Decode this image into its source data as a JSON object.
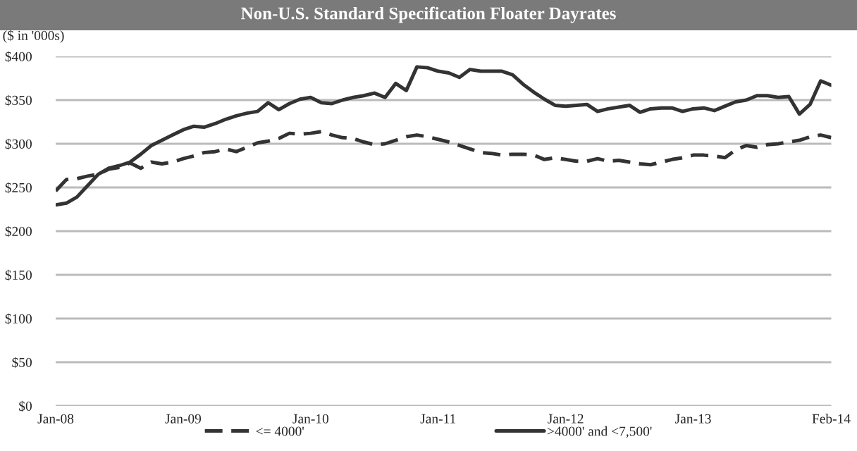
{
  "chart_data": {
    "type": "line",
    "title": "Non-U.S. Standard Specification Floater Dayrates",
    "ylabel": "($ in '000s)",
    "categories": [
      "Jan-08",
      null,
      null,
      null,
      null,
      null,
      null,
      null,
      null,
      null,
      null,
      null,
      "Jan-09",
      null,
      null,
      null,
      null,
      null,
      null,
      null,
      null,
      null,
      null,
      null,
      "Jan-10",
      null,
      null,
      null,
      null,
      null,
      null,
      null,
      null,
      null,
      null,
      null,
      "Jan-11",
      null,
      null,
      null,
      null,
      null,
      null,
      null,
      null,
      null,
      null,
      null,
      "Jan-12",
      null,
      null,
      null,
      null,
      null,
      null,
      null,
      null,
      null,
      null,
      null,
      "Jan-13",
      null,
      null,
      null,
      null,
      null,
      null,
      null,
      null,
      null,
      null,
      null,
      null,
      "Feb-14"
    ],
    "series": [
      {
        "name": "<= 4000'",
        "color": "#333333",
        "line_style": "dashed",
        "values": [
          246,
          259,
          260,
          263,
          265,
          271,
          273,
          278,
          272,
          279,
          277,
          279,
          283,
          286,
          290,
          291,
          294,
          291,
          296,
          301,
          303,
          306,
          312,
          311,
          312,
          314,
          310,
          307,
          306,
          302,
          299,
          300,
          304,
          308,
          310,
          308,
          305,
          302,
          298,
          294,
          290,
          289,
          287,
          288,
          288,
          287,
          282,
          284,
          282,
          280,
          280,
          283,
          280,
          281,
          279,
          277,
          276,
          279,
          282,
          284,
          287,
          287,
          286,
          284,
          293,
          298,
          296,
          299,
          300,
          302,
          304,
          308,
          310,
          307
        ]
      },
      {
        "name": ">4000' and <7,500'",
        "color": "#333333",
        "line_style": "solid",
        "values": [
          230,
          232,
          239,
          252,
          265,
          272,
          275,
          279,
          288,
          298,
          304,
          310,
          316,
          320,
          319,
          323,
          328,
          332,
          335,
          337,
          347,
          339,
          346,
          351,
          353,
          347,
          346,
          350,
          353,
          355,
          358,
          353,
          369,
          361,
          388,
          387,
          383,
          381,
          376,
          385,
          383,
          383,
          383,
          379,
          368,
          359,
          351,
          344,
          343,
          344,
          345,
          337,
          340,
          342,
          344,
          336,
          340,
          341,
          341,
          337,
          340,
          341,
          338,
          343,
          348,
          350,
          355,
          355,
          353,
          354,
          334,
          345,
          372,
          367
        ]
      }
    ],
    "ylim": [
      0,
      400
    ],
    "yticks": [
      {
        "value": 0,
        "label": "$0"
      },
      {
        "value": 50,
        "label": "$50"
      },
      {
        "value": 100,
        "label": "$100"
      },
      {
        "value": 150,
        "label": "$150"
      },
      {
        "value": 200,
        "label": "$200"
      },
      {
        "value": 250,
        "label": "$250"
      },
      {
        "value": 300,
        "label": "$300"
      },
      {
        "value": 350,
        "label": "$350"
      },
      {
        "value": 400,
        "label": "$400"
      }
    ],
    "grid": "y",
    "legend": "bottom"
  }
}
